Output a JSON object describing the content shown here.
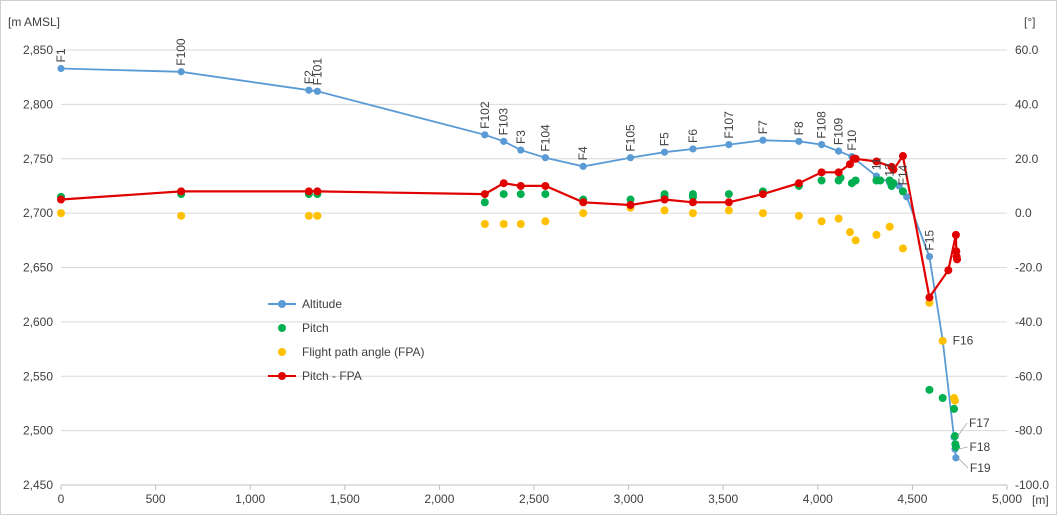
{
  "chart_data": {
    "type": "line",
    "left_axis_unit": "[m AMSL]",
    "right_axis_unit": "[°]",
    "x_axis_unit": "[m]",
    "x_ticks": [
      "0",
      "500",
      "1,000",
      "1,500",
      "2,000",
      "2,500",
      "3,000",
      "3,500",
      "4,000",
      "4,500",
      "5,000"
    ],
    "left_ticks": [
      "2,850",
      "2,800",
      "2,750",
      "2,700",
      "2,650",
      "2,600",
      "2,550",
      "2,500",
      "2,450"
    ],
    "right_ticks": [
      "60.0",
      "40.0",
      "20.0",
      "0.0",
      "-20.0",
      "-40.0",
      "-60.0",
      "-80.0",
      "-100.0"
    ],
    "xlim": [
      0,
      5000
    ],
    "ylim_left": [
      2450,
      2850
    ],
    "ylim_right": [
      -100,
      60
    ],
    "grid": "horizontal",
    "legend_position": "left-middle",
    "series": [
      {
        "name": "Altitude",
        "axis": "left",
        "style": "line-markers",
        "color": "#5b9bd5",
        "x": [
          0,
          635,
          1310,
          1355,
          2240,
          2340,
          2430,
          2560,
          2760,
          3010,
          3190,
          3340,
          3530,
          3710,
          3900,
          4020,
          4110,
          4180,
          4310,
          4380,
          4430,
          4470,
          4590,
          4660,
          4720,
          4725,
          4730
        ],
        "y": [
          2833,
          2830,
          2813,
          2812,
          2772,
          2766,
          2758,
          2751,
          2743,
          2751,
          2756,
          2759,
          2763,
          2767,
          2766,
          2763,
          2757,
          2752,
          2734,
          2728,
          2725,
          2715,
          2660,
          2583,
          2494,
          2483,
          2475
        ]
      },
      {
        "name": "Pitch",
        "axis": "right",
        "style": "markers",
        "color": "#00b050",
        "x": [
          0,
          635,
          1310,
          1355,
          2240,
          2340,
          2430,
          2560,
          2760,
          3010,
          3190,
          3190,
          3340,
          3340,
          3530,
          3710,
          3900,
          4020,
          4110,
          4120,
          4180,
          4200,
          4310,
          4330,
          4380,
          4390,
          4400,
          4450,
          4590,
          4660,
          4720,
          4725,
          4727,
          4730
        ],
        "y": [
          6,
          7,
          7,
          7,
          4,
          7,
          7,
          7,
          5,
          5,
          7,
          6,
          7,
          6,
          7,
          8,
          10,
          12,
          12,
          13,
          11,
          12,
          12,
          12,
          12,
          10,
          11,
          8,
          -65,
          -68,
          -72,
          -82,
          -85,
          -86
        ]
      },
      {
        "name": "Flight path angle (FPA)",
        "axis": "right",
        "style": "markers",
        "color": "#ffc000",
        "x": [
          0,
          635,
          1310,
          1355,
          2240,
          2340,
          2430,
          2560,
          2760,
          3010,
          3190,
          3340,
          3530,
          3710,
          3900,
          4020,
          4110,
          4170,
          4200,
          4310,
          4380,
          4450,
          4590,
          4660,
          4720,
          4725
        ],
        "y": [
          0,
          -1,
          -1,
          -1,
          -4,
          -4,
          -4,
          -3,
          0,
          2,
          1,
          0,
          1,
          0,
          -1,
          -3,
          -2,
          -7,
          -10,
          -8,
          -5,
          -13,
          -33,
          -47,
          -68,
          -69
        ]
      },
      {
        "name": "Pitch - FPA",
        "axis": "right",
        "style": "line-markers",
        "color": "#e00000",
        "x": [
          0,
          635,
          1310,
          1355,
          2240,
          2340,
          2430,
          2560,
          2760,
          3010,
          3190,
          3340,
          3530,
          3710,
          3900,
          4020,
          4110,
          4170,
          4190,
          4200,
          4310,
          4390,
          4400,
          4450,
          4590,
          4690,
          4730,
          4732,
          4734,
          4736
        ],
        "y": [
          5,
          8,
          8,
          8,
          7,
          11,
          10,
          10,
          4,
          3,
          5,
          4,
          4,
          7,
          11,
          15,
          15,
          18,
          20,
          20,
          19,
          17,
          16,
          21,
          -31,
          -21,
          -8,
          -14,
          -16,
          -17
        ]
      }
    ],
    "annotations": [
      {
        "text": "F1",
        "x": 0,
        "y": 2833
      },
      {
        "text": "F100",
        "x": 635,
        "y": 2830
      },
      {
        "text": "F2",
        "x": 1310,
        "y": 2813
      },
      {
        "text": "F101",
        "x": 1355,
        "y": 2812
      },
      {
        "text": "F102",
        "x": 2240,
        "y": 2772
      },
      {
        "text": "F103",
        "x": 2340,
        "y": 2766
      },
      {
        "text": "F3",
        "x": 2430,
        "y": 2758
      },
      {
        "text": "F104",
        "x": 2560,
        "y": 2751
      },
      {
        "text": "F4",
        "x": 2760,
        "y": 2743
      },
      {
        "text": "F105",
        "x": 3010,
        "y": 2751
      },
      {
        "text": "F5",
        "x": 3190,
        "y": 2756
      },
      {
        "text": "F6",
        "x": 3340,
        "y": 2759
      },
      {
        "text": "F107",
        "x": 3530,
        "y": 2763
      },
      {
        "text": "F7",
        "x": 3710,
        "y": 2767
      },
      {
        "text": "F8",
        "x": 3900,
        "y": 2766
      },
      {
        "text": "F108",
        "x": 4020,
        "y": 2763
      },
      {
        "text": "F109",
        "x": 4110,
        "y": 2757
      },
      {
        "text": "F10",
        "x": 4180,
        "y": 2752
      },
      {
        "text": "11",
        "x": 4310,
        "y": 2734
      },
      {
        "text": "12",
        "x": 4380,
        "y": 2728
      },
      {
        "text": "F14",
        "x": 4450,
        "y": 2720
      },
      {
        "text": "F15",
        "x": 4590,
        "y": 2660
      },
      {
        "text": "F16",
        "x": 4660,
        "y": 2583,
        "orientation": "horizontal"
      },
      {
        "text": "F17",
        "x": 4725,
        "y": 2494,
        "orientation": "horizontal"
      },
      {
        "text": "F18",
        "x": 4728,
        "y": 2483,
        "orientation": "horizontal"
      },
      {
        "text": "F19",
        "x": 4730,
        "y": 2475,
        "orientation": "horizontal"
      }
    ]
  }
}
